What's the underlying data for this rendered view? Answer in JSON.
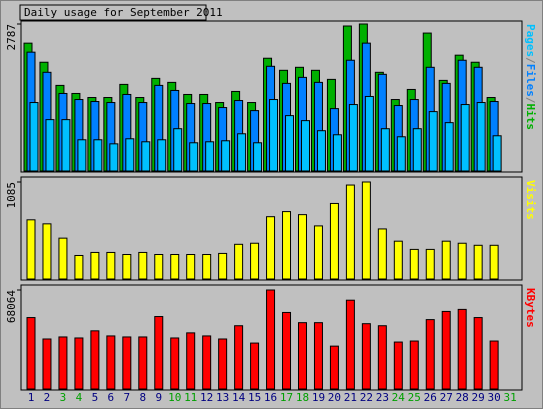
{
  "title": "Daily usage for September 2011",
  "chart_data": [
    {
      "type": "bar",
      "ylim": [
        0,
        2787
      ],
      "yticks": [
        2787
      ],
      "legend_position": "right",
      "legend_separator": "/",
      "series": [
        {
          "name": "Hits",
          "color": "#00b000",
          "values": [
            2424,
            2062,
            1623,
            1470,
            1393,
            1393,
            1642,
            1393,
            1756,
            1680,
            1451,
            1451,
            1298,
            1508,
            1298,
            2138,
            1909,
            1966,
            1909,
            1737,
            2749,
            2787,
            1871,
            1355,
            1546,
            2615,
            1718,
            2196,
            2062,
            1393,
            null
          ]
        },
        {
          "name": "Files",
          "color": "#0080ff",
          "values": [
            2253,
            1871,
            1470,
            1355,
            1317,
            1298,
            1451,
            1298,
            1623,
            1527,
            1279,
            1279,
            1203,
            1336,
            1145,
            1985,
            1661,
            1775,
            1680,
            1183,
            2100,
            2424,
            1833,
            1241,
            1355,
            1966,
            1661,
            2100,
            1966,
            1317,
            null
          ]
        },
        {
          "name": "Pages",
          "color": "#00c0ff",
          "values": [
            1298,
            974,
            974,
            592,
            592,
            515,
            611,
            554,
            592,
            802,
            535,
            554,
            573,
            706,
            535,
            1355,
            1050,
            955,
            764,
            687,
            1260,
            1413,
            802,
            649,
            802,
            1126,
            917,
            1260,
            1298,
            668,
            null
          ]
        }
      ]
    },
    {
      "type": "bar",
      "ylim": [
        0,
        1085
      ],
      "yticks": [
        1085
      ],
      "legend_position": "right",
      "series": [
        {
          "name": "Visits",
          "color": "#ffff00",
          "values": [
            662,
            617,
            457,
            263,
            297,
            297,
            274,
            297,
            274,
            274,
            274,
            274,
            286,
            388,
            400,
            697,
            754,
            720,
            594,
            845,
            1051,
            1085,
            560,
            423,
            331,
            331,
            423,
            400,
            377,
            377,
            null
          ]
        }
      ]
    },
    {
      "type": "bar",
      "ylim": [
        0,
        68064
      ],
      "yticks": [
        68064
      ],
      "legend_position": "right",
      "categories": [
        "1",
        "2",
        "3",
        "4",
        "5",
        "6",
        "7",
        "8",
        "9",
        "10",
        "11",
        "12",
        "13",
        "14",
        "15",
        "16",
        "17",
        "18",
        "19",
        "20",
        "21",
        "22",
        "23",
        "24",
        "25",
        "26",
        "27",
        "28",
        "29",
        "30",
        "31"
      ],
      "category_colors": [
        "#000080",
        "#000080",
        "#00a000",
        "#00a000",
        "#000080",
        "#000080",
        "#000080",
        "#000080",
        "#000080",
        "#00a000",
        "#00a000",
        "#000080",
        "#000080",
        "#000080",
        "#000080",
        "#000080",
        "#00a000",
        "#00a000",
        "#000080",
        "#000080",
        "#000080",
        "#000080",
        "#000080",
        "#00a000",
        "#00a000",
        "#000080",
        "#000080",
        "#000080",
        "#000080",
        "#000080",
        "#00a000"
      ],
      "series": [
        {
          "name": "KBytes",
          "color": "#ff0000",
          "values": [
            49118,
            34383,
            35786,
            35084,
            39996,
            36487,
            35786,
            35786,
            49820,
            35084,
            38593,
            36487,
            34383,
            43505,
            31577,
            68064,
            52627,
            45611,
            45611,
            29471,
            61048,
            44909,
            43505,
            32278,
            32980,
            47715,
            53329,
            54732,
            49118,
            32980,
            null
          ]
        }
      ]
    }
  ]
}
